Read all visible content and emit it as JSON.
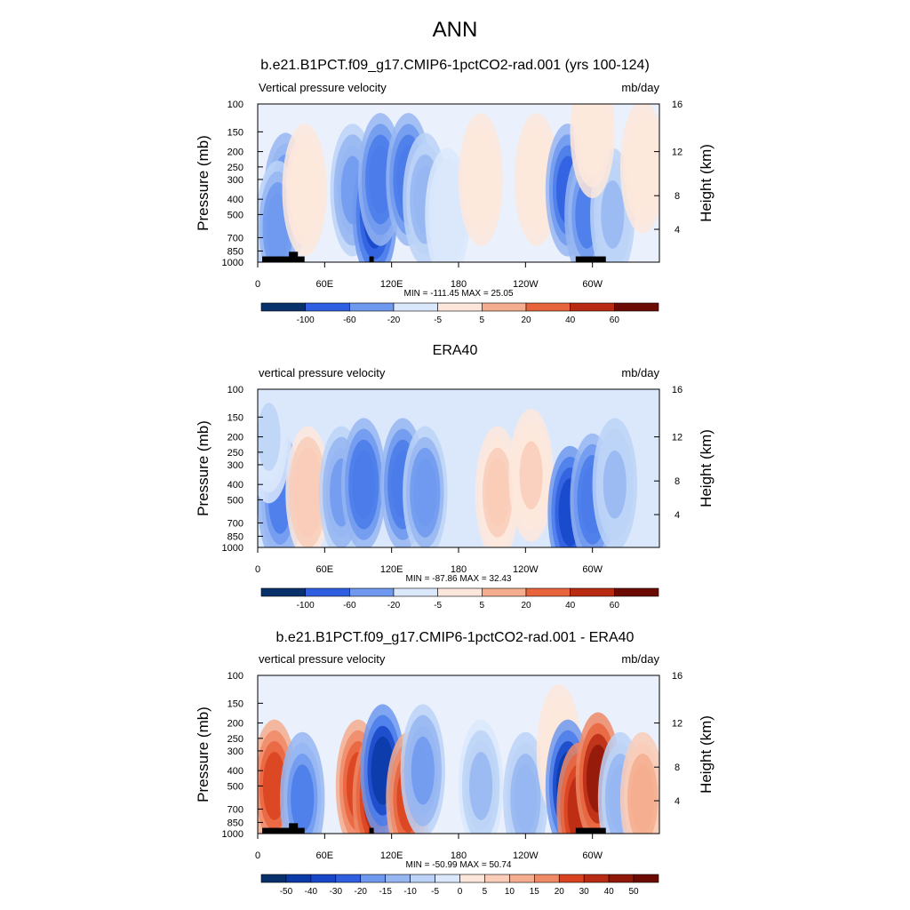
{
  "figure": {
    "title": "ANN"
  },
  "chart_data": [
    {
      "type": "heatmap",
      "title": "b.e21.B1PCT.f09_g17.CMIP6-1pctCO2-rad.001 (yrs 100-124)",
      "left_label": "Vertical pressure velocity",
      "right_label": "mb/day",
      "ylabel": "Pressure (mb)",
      "y2label": "Height (km)",
      "xticks": [
        "0",
        "60E",
        "120E",
        "180",
        "120W",
        "60W"
      ],
      "yticks": [
        "100",
        "150",
        "200",
        "250",
        "300",
        "400",
        "500",
        "700",
        "850",
        "1000"
      ],
      "y2ticks": [
        "16",
        "12",
        "8",
        "4"
      ],
      "stats": "MIN = -111.45  MAX =  25.05",
      "colorbar_labels": [
        "-100",
        "-60",
        "-20",
        "-5",
        "5",
        "20",
        "40",
        "60"
      ],
      "features": [
        {
          "lon": 25,
          "p": 400,
          "v": -40
        },
        {
          "lon": 18,
          "p": 600,
          "v": -35
        },
        {
          "lon": 42,
          "p": 350,
          "v": 6
        },
        {
          "lon": 85,
          "p": 350,
          "v": -30
        },
        {
          "lon": 105,
          "p": 500,
          "v": -60
        },
        {
          "lon": 110,
          "p": 300,
          "v": -45
        },
        {
          "lon": 135,
          "p": 300,
          "v": -45
        },
        {
          "lon": 150,
          "p": 400,
          "v": -25
        },
        {
          "lon": 170,
          "p": 500,
          "v": -8
        },
        {
          "lon": 200,
          "p": 300,
          "v": 3
        },
        {
          "lon": 250,
          "p": 300,
          "v": 5
        },
        {
          "lon": 278,
          "p": 350,
          "v": -50
        },
        {
          "lon": 295,
          "p": 500,
          "v": -40
        },
        {
          "lon": 318,
          "p": 500,
          "v": -20
        },
        {
          "lon": 345,
          "p": 250,
          "v": 8
        },
        {
          "lon": 300,
          "p": 150,
          "v": 5
        }
      ]
    },
    {
      "type": "heatmap",
      "title": "ERA40",
      "left_label": "vertical pressure velocity",
      "right_label": "mb/day",
      "ylabel": "Pressure (mb)",
      "y2label": "Height (km)",
      "xticks": [
        "0",
        "60E",
        "120E",
        "180",
        "120W",
        "60W"
      ],
      "yticks": [
        "100",
        "150",
        "200",
        "250",
        "300",
        "400",
        "500",
        "700",
        "850",
        "1000"
      ],
      "y2ticks": [
        "16",
        "12",
        "8",
        "4"
      ],
      "stats": "MIN = -87.86  MAX =  32.43",
      "colorbar_labels": [
        "-100",
        "-60",
        "-20",
        "-5",
        "5",
        "20",
        "40",
        "60"
      ],
      "features": [
        {
          "lon": 20,
          "p": 500,
          "v": -40
        },
        {
          "lon": 45,
          "p": 450,
          "v": 15
        },
        {
          "lon": 75,
          "p": 450,
          "v": -30
        },
        {
          "lon": 95,
          "p": 400,
          "v": -45
        },
        {
          "lon": 130,
          "p": 400,
          "v": -45
        },
        {
          "lon": 150,
          "p": 450,
          "v": -35
        },
        {
          "lon": 215,
          "p": 450,
          "v": 12
        },
        {
          "lon": 245,
          "p": 350,
          "v": 10
        },
        {
          "lon": 280,
          "p": 600,
          "v": -60
        },
        {
          "lon": 300,
          "p": 500,
          "v": -45
        },
        {
          "lon": 320,
          "p": 400,
          "v": -20
        },
        {
          "lon": 10,
          "p": 200,
          "v": -10
        }
      ]
    },
    {
      "type": "heatmap",
      "title": "b.e21.B1PCT.f09_g17.CMIP6-1pctCO2-rad.001 - ERA40",
      "left_label": "vertical pressure velocity",
      "right_label": "mb/day",
      "ylabel": "Pressure (mb)",
      "y2label": "Height (km)",
      "xticks": [
        "0",
        "60E",
        "120E",
        "180",
        "120W",
        "60W"
      ],
      "yticks": [
        "100",
        "150",
        "200",
        "250",
        "300",
        "400",
        "500",
        "700",
        "850",
        "1000"
      ],
      "y2ticks": [
        "16",
        "12",
        "8",
        "4"
      ],
      "stats": "MIN = -50.99  MAX =  50.74",
      "colorbar_labels": [
        "-50",
        "-40",
        "-30",
        "-20",
        "-15",
        "-10",
        "-5",
        "0",
        "5",
        "10",
        "15",
        "20",
        "30",
        "40",
        "50"
      ],
      "features": [
        {
          "lon": 15,
          "p": 500,
          "v": 35
        },
        {
          "lon": 40,
          "p": 600,
          "v": -25
        },
        {
          "lon": 90,
          "p": 500,
          "v": 30
        },
        {
          "lon": 105,
          "p": 600,
          "v": 40
        },
        {
          "lon": 112,
          "p": 400,
          "v": -45
        },
        {
          "lon": 135,
          "p": 600,
          "v": 35
        },
        {
          "lon": 148,
          "p": 400,
          "v": -20
        },
        {
          "lon": 200,
          "p": 500,
          "v": -12
        },
        {
          "lon": 240,
          "p": 600,
          "v": -15
        },
        {
          "lon": 270,
          "p": 300,
          "v": 4
        },
        {
          "lon": 278,
          "p": 500,
          "v": -45
        },
        {
          "lon": 288,
          "p": 700,
          "v": 40
        },
        {
          "lon": 305,
          "p": 450,
          "v": 45
        },
        {
          "lon": 325,
          "p": 600,
          "v": -15
        },
        {
          "lon": 345,
          "p": 600,
          "v": 15
        }
      ]
    }
  ],
  "colors": {
    "neg": [
      "#08306b",
      "#0a3aa6",
      "#1746c9",
      "#2f5fe0",
      "#4a7bea",
      "#6f99ee",
      "#96b6f2",
      "#bcd3f7",
      "#dbe8fb"
    ],
    "pos": [
      "#fde7dc",
      "#f9cdb8",
      "#f4ad8e",
      "#ef8a66",
      "#e8643d",
      "#d9421f",
      "#b82a12",
      "#8f1708",
      "#6b0a02"
    ]
  }
}
